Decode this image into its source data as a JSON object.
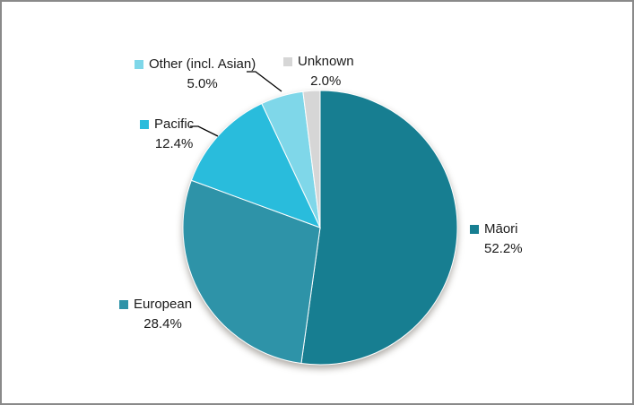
{
  "figure": {
    "background": "#FFFFFF",
    "border_color": "#8A8A8A",
    "text_color": "#1A1A1A"
  },
  "chart_data": {
    "type": "pie",
    "title": "",
    "direction": "clockwise",
    "start_angle_deg": 0,
    "legend_position": "data-labels-around-pie",
    "slices": [
      {
        "label": "Māori",
        "value": 52.2,
        "pct_label": "52.2%",
        "color": "#177E91"
      },
      {
        "label": "European",
        "value": 28.4,
        "pct_label": "28.4%",
        "color": "#2E93A8"
      },
      {
        "label": "Pacific",
        "value": 12.4,
        "pct_label": "12.4%",
        "color": "#29BCDC"
      },
      {
        "label": "Other (incl. Asian)",
        "value": 5.0,
        "pct_label": "5.0%",
        "color": "#7FD7E9"
      },
      {
        "label": "Unknown",
        "value": 2.0,
        "pct_label": "2.0%",
        "color": "#D6D6D6"
      }
    ]
  }
}
